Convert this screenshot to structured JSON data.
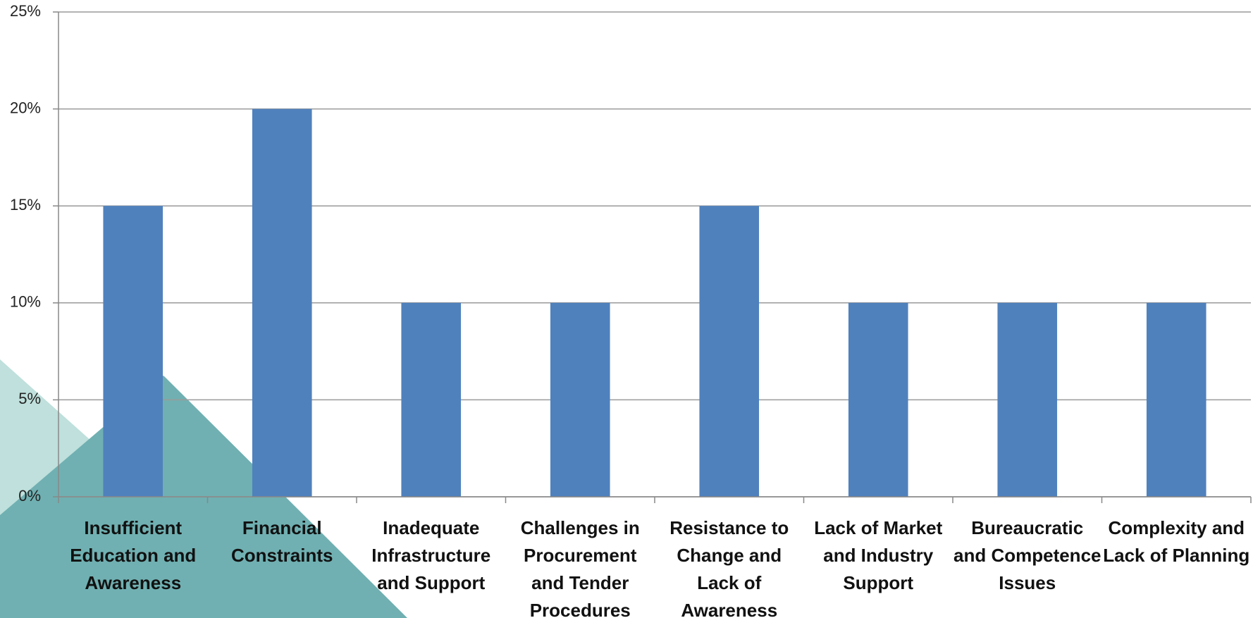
{
  "chart_data": {
    "type": "bar",
    "categories": [
      "Insufficient Education and Awareness",
      "Financial Constraints",
      "Inadequate Infrastructure and Support",
      "Challenges in Procurement and Tender Procedures",
      "Resistance to Change and Lack of Awareness",
      "Lack of Market and Industry Support",
      "Bureaucratic and Competence Issues",
      "Complexity and Lack of Planning"
    ],
    "values": [
      15,
      20,
      10,
      10,
      15,
      10,
      10,
      10
    ],
    "color": "#4f81bd",
    "ylim": [
      0,
      25
    ],
    "yticks": [
      {
        "value": 0,
        "label": "0%"
      },
      {
        "value": 5,
        "label": "5%"
      },
      {
        "value": 10,
        "label": "10%"
      },
      {
        "value": 15,
        "label": "15%"
      },
      {
        "value": 20,
        "label": "20%"
      },
      {
        "value": 25,
        "label": "25%"
      }
    ],
    "grid": true
  }
}
